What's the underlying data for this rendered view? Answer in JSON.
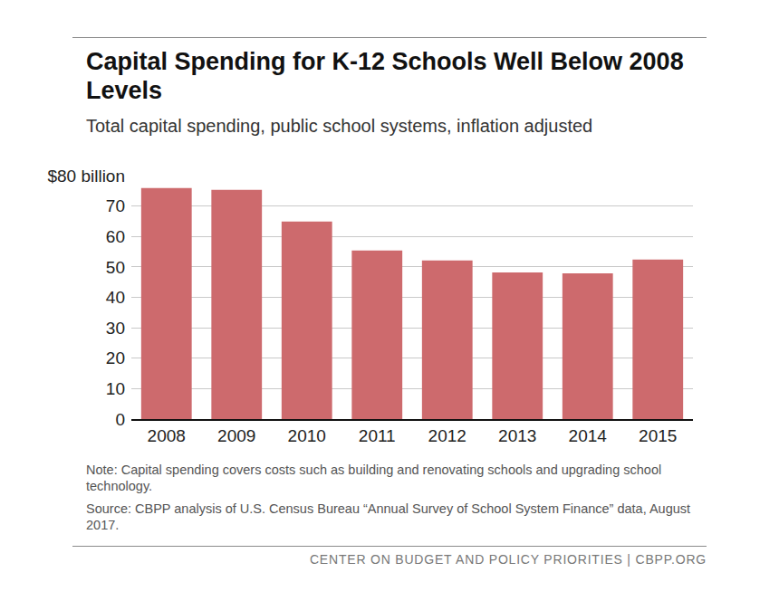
{
  "chart_data": {
    "type": "bar",
    "title": "Capital Spending for K-12 Schools Well Below 2008 Levels",
    "subtitle": "Total capital spending, public school systems, inflation adjusted",
    "categories": [
      "2008",
      "2009",
      "2010",
      "2011",
      "2012",
      "2013",
      "2014",
      "2015"
    ],
    "values": [
      75.9,
      75.3,
      64.9,
      55.4,
      52.1,
      48.2,
      47.9,
      52.4
    ],
    "color": "#cd6a6d",
    "ylim": [
      0,
      80
    ],
    "yticks": [
      0,
      10,
      20,
      30,
      40,
      50,
      60,
      70,
      {
        "value": 80,
        "label": "$80 billion"
      }
    ],
    "grid": true,
    "note": "Note:  Capital spending covers costs such as building and renovating schools and upgrading school technology.",
    "source": "Source: CBPP analysis of U.S. Census Bureau “Annual Survey of School System Finance” data, August 2017.",
    "footer": "CENTER ON BUDGET AND POLICY PRIORITIES | CBPP.ORG"
  }
}
